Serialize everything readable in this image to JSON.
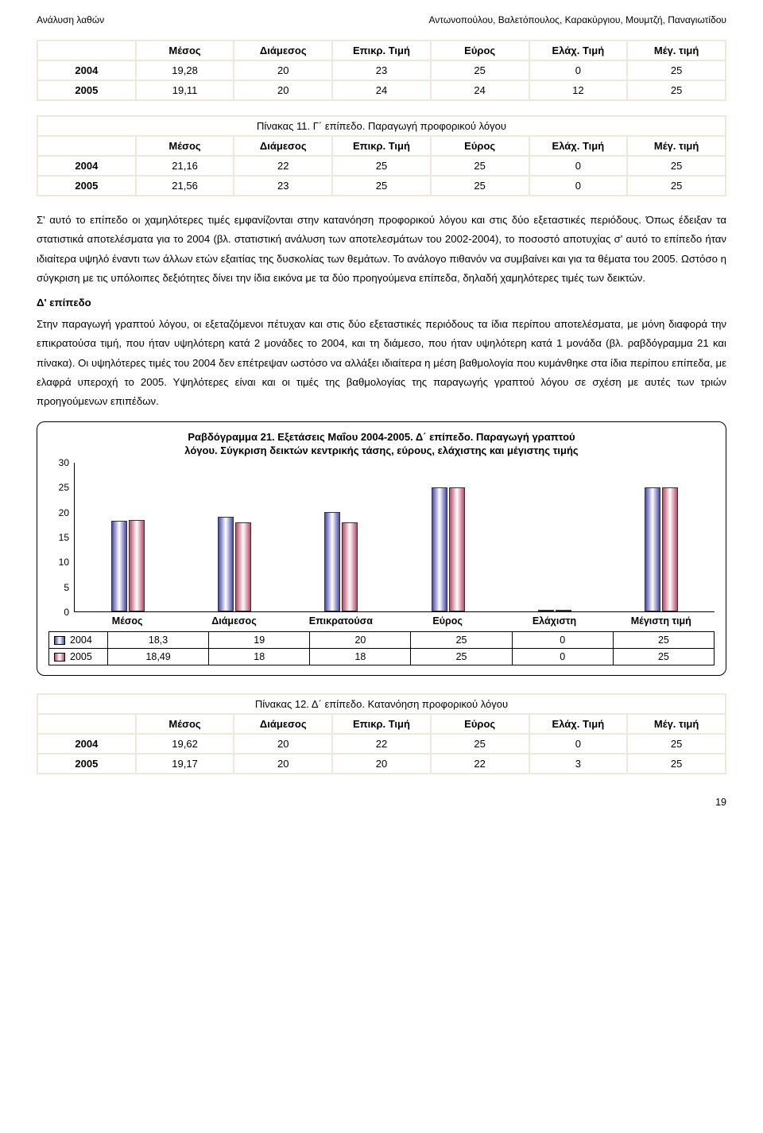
{
  "header": {
    "left": "Ανάλυση λαθών",
    "right": "Αντωνοπούλου, Βαλετόπουλος, Καρακύργιου, Μουμτζή, Παναγιωτίδου"
  },
  "table1": {
    "columns": [
      "",
      "Μέσος",
      "Διάμεσος",
      "Επικρ. Τιμή",
      "Εύρος",
      "Ελάχ. Τιμή",
      "Μέγ. τιμή"
    ],
    "rows": [
      [
        "2004",
        "19,28",
        "20",
        "23",
        "25",
        "0",
        "25"
      ],
      [
        "2005",
        "19,11",
        "20",
        "24",
        "24",
        "12",
        "25"
      ]
    ]
  },
  "table2": {
    "caption": "Πίνακας 11. Γ΄ επίπεδο. Παραγωγή προφορικού λόγου",
    "columns": [
      "",
      "Μέσος",
      "Διάμεσος",
      "Επικρ. Τιμή",
      "Εύρος",
      "Ελάχ. Τιμή",
      "Μέγ. τιμή"
    ],
    "rows": [
      [
        "2004",
        "21,16",
        "22",
        "25",
        "25",
        "0",
        "25"
      ],
      [
        "2005",
        "21,56",
        "23",
        "25",
        "25",
        "0",
        "25"
      ]
    ]
  },
  "para1": "Σ' αυτό το επίπεδο οι χαμηλότερες τιμές εμφανίζονται στην κατανόηση προφορικού λόγου και στις δύο εξεταστικές περιόδους. Όπως έδειξαν τα στατιστικά αποτελέσματα για το 2004 (βλ. στατιστική ανάλυση των αποτελεσμάτων του 2002-2004), το ποσοστό αποτυχίας σ' αυτό το επίπεδο ήταν ιδιαίτερα υψηλό έναντι των άλλων ετών εξαιτίας της δυσκολίας των θεμάτων. Το ανάλογο πιθανόν να συμβαίνει και για τα θέματα του 2005. Ωστόσο η σύγκριση με τις υπόλοιπες δεξιότητες δίνει την ίδια εικόνα με τα δύο προηγούμενα επίπεδα, δηλαδή χαμηλότερες τιμές των δεικτών.",
  "section_label": "Δ' επίπεδο",
  "para2": "Στην παραγωγή γραπτού λόγου, οι εξεταζόμενοι πέτυχαν και στις δύο εξεταστικές περιόδους τα ίδια περίπου αποτελέσματα, με μόνη διαφορά την επικρατούσα τιμή, που ήταν υψηλότερη κατά 2 μονάδες το 2004, και τη διάμεσο, που ήταν υψηλότερη κατά 1 μονάδα (βλ. ραβδόγραμμα 21 και πίνακα).  Οι υψηλότερες τιμές του 2004 δεν επέτρεψαν ωστόσο να αλλάξει ιδιαίτερα η μέση βαθμολογία που κυμάνθηκε στα ίδια περίπου επίπεδα, με ελαφρά υπεροχή το 2005. Υψηλότερες είναι και οι τιμές της βαθμολογίας της παραγωγής γραπτού λόγου σε σχέση με αυτές των τριών προηγούμενων επιπέδων.",
  "chart": {
    "title_line1": "Ραβδόγραμμα 21. Εξετάσεις Μαΐου 2004-2005. Δ΄ επίπεδο. Παραγωγή γραπτού",
    "title_line2": "λόγου. Σύγκριση δεικτών κεντρικής τάσης, εύρους, ελάχιστης και μέγιστης τιμής",
    "categories": [
      "Μέσος",
      "Διάμεσος",
      "Επικρατούσα",
      "Εύρος",
      "Ελάχιστη",
      "Μέγιστη τιμή"
    ],
    "ymax": 30,
    "ytick_step": 5,
    "series": [
      {
        "label": "2004",
        "gradient": [
          "#4a4aa8",
          "#ffffff",
          "#4a4aa8"
        ],
        "values": [
          18.3,
          19,
          20,
          25,
          0,
          25
        ]
      },
      {
        "label": "2005",
        "gradient": [
          "#b84a6a",
          "#ffffff",
          "#b84a6a"
        ],
        "values": [
          18.49,
          18,
          18,
          25,
          0,
          25
        ]
      }
    ],
    "grid_rows": [
      [
        "2004",
        "18,3",
        "19",
        "20",
        "25",
        "0",
        "25"
      ],
      [
        "2005",
        "18,49",
        "18",
        "18",
        "25",
        "0",
        "25"
      ]
    ],
    "background": "#ffffff",
    "border_color": "#000000"
  },
  "table3": {
    "caption": "Πίνακας 12. Δ΄ επίπεδο. Κατανόηση προφορικού λόγου",
    "columns": [
      "",
      "Μέσος",
      "Διάμεσος",
      "Επικρ. Τιμή",
      "Εύρος",
      "Ελάχ. Τιμή",
      "Μέγ. τιμή"
    ],
    "rows": [
      [
        "2004",
        "19,62",
        "20",
        "22",
        "25",
        "0",
        "25"
      ],
      [
        "2005",
        "19,17",
        "20",
        "20",
        "22",
        "3",
        "25"
      ]
    ]
  },
  "page_number": "19"
}
